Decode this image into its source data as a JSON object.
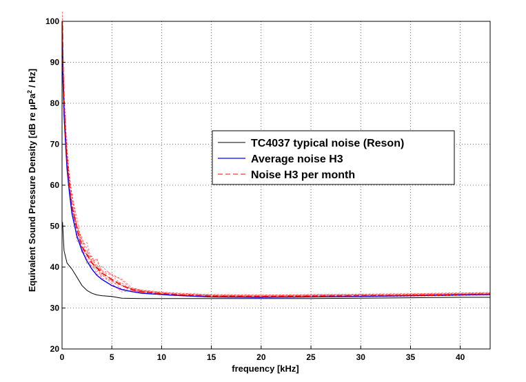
{
  "chart_data": {
    "type": "line",
    "title": "",
    "xlabel": "frequency [kHz]",
    "ylabel_prefix": "Equivalent Sound Pressure Density [dB re  μPa",
    "ylabel_sup": "2",
    "ylabel_suffix": " / Hz]",
    "xlim": [
      0,
      43
    ],
    "ylim": [
      20,
      100
    ],
    "xticks": [
      0,
      5,
      10,
      15,
      20,
      25,
      30,
      35,
      40
    ],
    "yticks": [
      20,
      30,
      40,
      50,
      60,
      70,
      80,
      90,
      100
    ],
    "grid": true,
    "legend_position": "right-middle",
    "series": [
      {
        "name": "TC4037 typical noise (Reson)",
        "color": "#000000",
        "style": "solid",
        "x": [
          0.05,
          0.2,
          0.5,
          1,
          1.5,
          2,
          2.5,
          3,
          3.5,
          4,
          5,
          6,
          8,
          10,
          15,
          20,
          25,
          30,
          35,
          40,
          43
        ],
        "y": [
          51,
          44,
          41,
          39.5,
          37.5,
          35.5,
          34.3,
          33.6,
          33.2,
          33.0,
          32.8,
          32.4,
          32.3,
          32.3,
          32.3,
          32.3,
          32.3,
          32.4,
          32.5,
          32.6,
          32.6
        ]
      },
      {
        "name": "Average noise H3",
        "color": "#0000ff",
        "style": "solid",
        "x": [
          0.05,
          0.1,
          0.2,
          0.35,
          0.5,
          0.75,
          1,
          1.5,
          2,
          2.5,
          3,
          3.5,
          4,
          5,
          6,
          7,
          8,
          10,
          12,
          15,
          20,
          25,
          30,
          35,
          40,
          43
        ],
        "y": [
          94,
          85,
          77,
          70,
          64,
          58,
          53,
          47.5,
          44,
          41.5,
          39.5,
          38,
          37,
          35.5,
          34.5,
          34,
          33.6,
          33.3,
          33.0,
          32.7,
          32.6,
          32.7,
          32.8,
          33.0,
          33.2,
          33.3
        ]
      },
      {
        "name": "Noise H3 per month",
        "color": "#ff0000",
        "style": "dashed",
        "x": [
          0.05,
          0.1,
          0.2,
          0.35,
          0.5,
          0.75,
          1,
          1.5,
          2,
          2.5,
          3,
          3.5,
          4,
          5,
          6,
          7,
          8,
          10,
          12,
          15,
          20,
          25,
          30,
          35,
          40,
          43
        ],
        "y": [
          99,
          89,
          80,
          72,
          66,
          59.5,
          55,
          49,
          45,
          43,
          41,
          39.8,
          38.5,
          37,
          35.5,
          34.5,
          34,
          33.5,
          33.2,
          32.9,
          32.8,
          32.9,
          33.0,
          33.1,
          33.3,
          33.4
        ]
      }
    ]
  }
}
